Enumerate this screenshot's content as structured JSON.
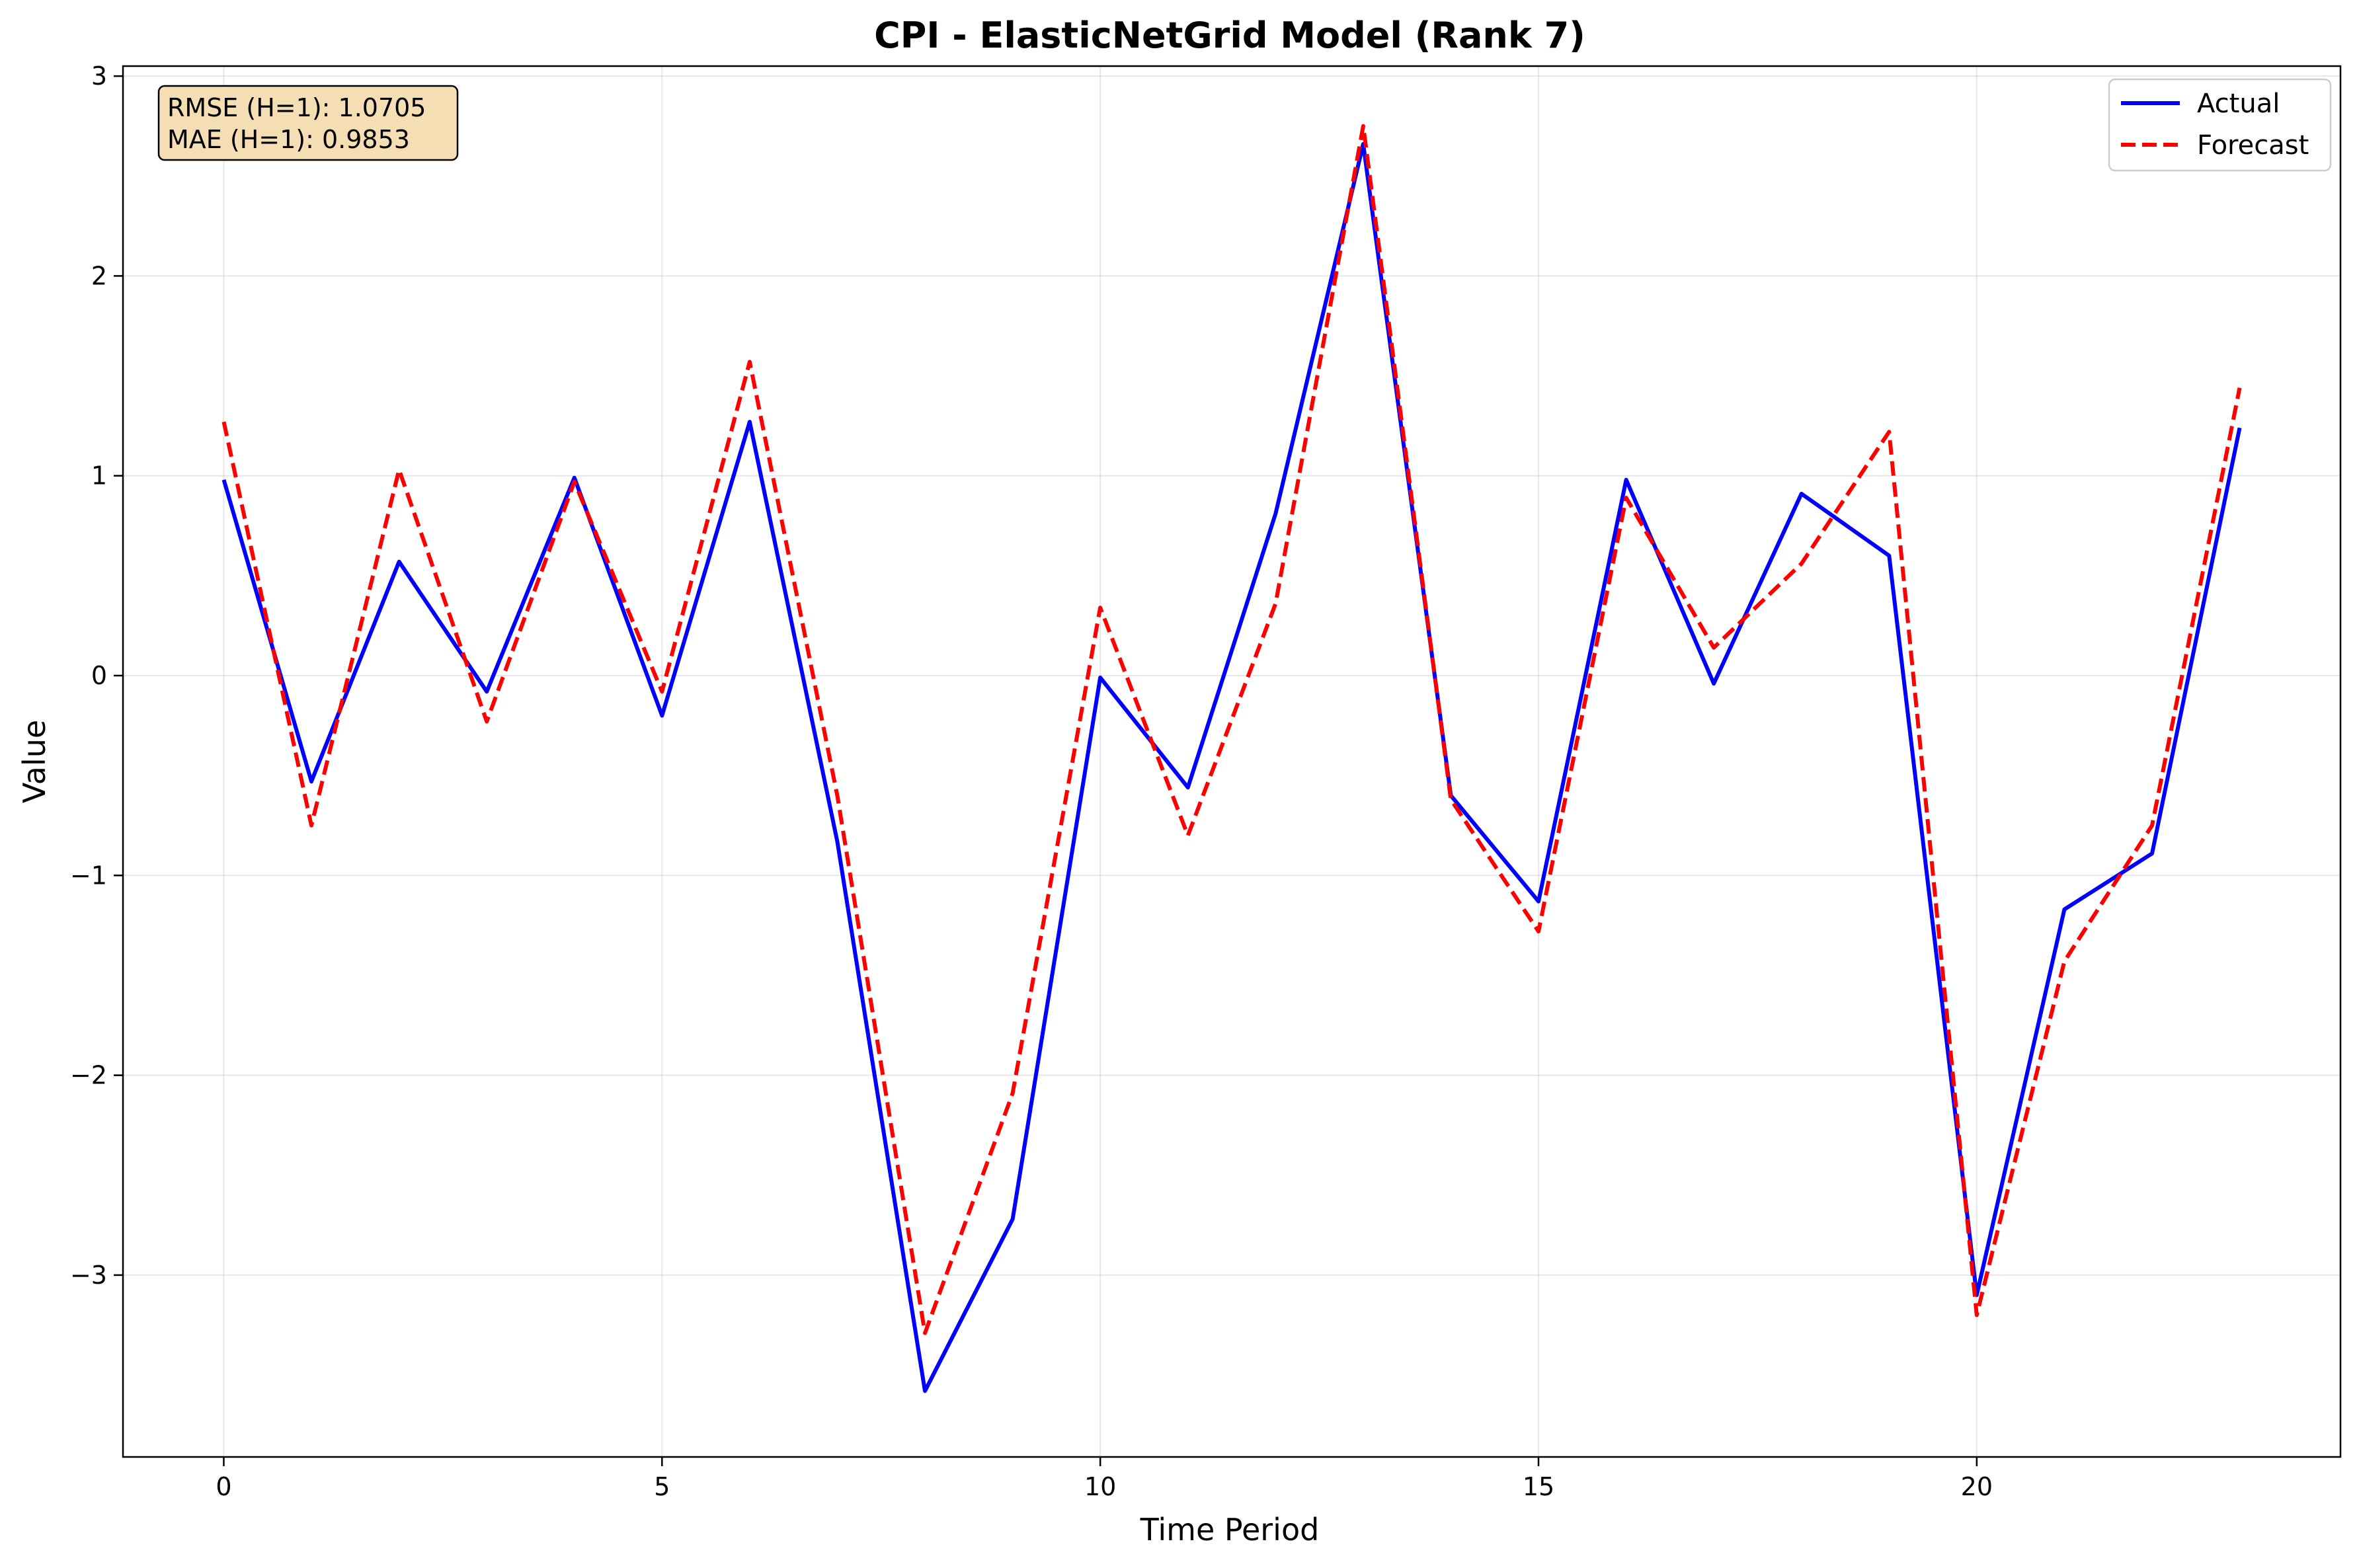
{
  "chart_data": {
    "type": "line",
    "title": "CPI - ElasticNetGrid Model (Rank 7)",
    "xlabel": "Time Period",
    "ylabel": "Value",
    "x": [
      0,
      1,
      2,
      3,
      4,
      5,
      6,
      7,
      8,
      9,
      10,
      11,
      12,
      13,
      14,
      15,
      16,
      17,
      18,
      19,
      20,
      21,
      22,
      23
    ],
    "xlim": [
      -1.15,
      24.15
    ],
    "ylim": [
      -3.91,
      3.05
    ],
    "xticks": [
      0,
      5,
      10,
      15,
      20
    ],
    "xtick_labels": [
      "0",
      "5",
      "10",
      "15",
      "20"
    ],
    "yticks": [
      -3,
      -2,
      -1,
      0,
      1,
      2,
      3
    ],
    "ytick_labels": [
      "−3",
      "−2",
      "−1",
      "0",
      "1",
      "2",
      "3"
    ],
    "grid": true,
    "legend_position": "top-right",
    "series": [
      {
        "name": "Actual",
        "color": "#0000ff",
        "style": "solid",
        "values": [
          0.98,
          -0.53,
          0.57,
          -0.08,
          0.99,
          -0.2,
          1.27,
          -0.83,
          -3.58,
          -2.72,
          -0.01,
          -0.56,
          0.81,
          2.66,
          -0.6,
          -1.13,
          0.98,
          -0.04,
          0.91,
          0.6,
          -3.1,
          -1.17,
          -0.89,
          1.24
        ]
      },
      {
        "name": "Forecast",
        "color": "#ff0000",
        "style": "dashed",
        "values": [
          1.27,
          -0.75,
          1.03,
          -0.23,
          0.97,
          -0.08,
          1.57,
          -0.6,
          -3.29,
          -2.09,
          0.34,
          -0.8,
          0.36,
          2.75,
          -0.62,
          -1.28,
          0.89,
          0.14,
          0.56,
          1.22,
          -3.2,
          -1.43,
          -0.75,
          1.44
        ]
      }
    ],
    "annotation": {
      "lines": [
        "RMSE (H=1): 1.0705",
        "MAE (H=1): 0.9853"
      ],
      "background": "#f5deb3"
    }
  }
}
